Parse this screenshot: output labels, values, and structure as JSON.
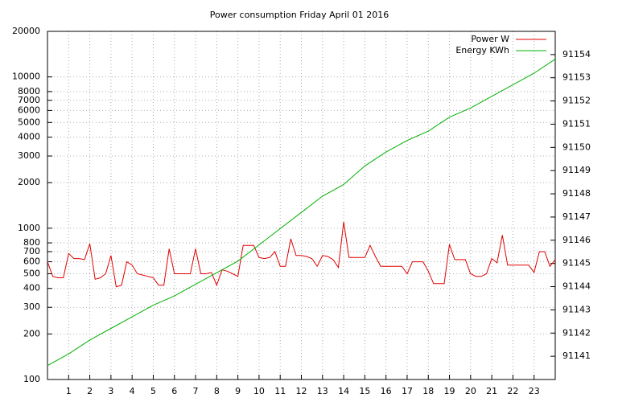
{
  "chart_data": {
    "type": "line",
    "title": "Power consumption Friday April 01 2016",
    "xlim": [
      0,
      24
    ],
    "xticks": [
      1,
      2,
      3,
      4,
      5,
      6,
      7,
      8,
      9,
      10,
      11,
      12,
      13,
      14,
      15,
      16,
      17,
      18,
      19,
      20,
      21,
      22,
      23
    ],
    "ylim": [
      100,
      20000
    ],
    "yscale": "log",
    "yticks": [
      100,
      200,
      300,
      400,
      500,
      600,
      700,
      800,
      1000,
      2000,
      3000,
      4000,
      5000,
      6000,
      7000,
      8000,
      10000,
      20000
    ],
    "y2lim": [
      91140,
      91155
    ],
    "y2ticks": [
      91141,
      91142,
      91143,
      91144,
      91145,
      91146,
      91147,
      91148,
      91149,
      91150,
      91151,
      91152,
      91153,
      91154
    ],
    "grid": true,
    "legend": "top-right",
    "series": [
      {
        "name": "Power W",
        "color": "#e00000",
        "x": [
          0,
          0.25,
          0.5,
          0.75,
          1,
          1.25,
          1.5,
          1.75,
          2,
          2.25,
          2.5,
          2.75,
          3,
          3.25,
          3.5,
          3.75,
          4,
          4.25,
          4.5,
          4.75,
          5,
          5.25,
          5.5,
          5.75,
          6,
          6.25,
          6.5,
          6.75,
          7,
          7.25,
          7.5,
          7.75,
          8,
          8.25,
          8.5,
          8.75,
          9,
          9.25,
          9.5,
          9.75,
          10,
          10.25,
          10.5,
          10.75,
          11,
          11.25,
          11.5,
          11.75,
          12,
          12.25,
          12.5,
          12.75,
          13,
          13.25,
          13.5,
          13.75,
          14,
          14.25,
          14.5,
          14.75,
          15,
          15.25,
          15.5,
          15.75,
          16,
          16.25,
          16.5,
          16.75,
          17,
          17.25,
          17.5,
          17.75,
          18,
          18.25,
          18.5,
          18.75,
          19,
          19.25,
          19.5,
          19.75,
          20,
          20.25,
          20.5,
          20.75,
          21,
          21.25,
          21.5,
          21.75,
          22,
          22.25,
          22.5,
          22.75,
          23,
          23.25,
          23.5,
          23.75,
          24
        ],
        "values": [
          600,
          480,
          470,
          470,
          680,
          630,
          630,
          620,
          790,
          460,
          470,
          500,
          660,
          410,
          420,
          600,
          570,
          500,
          490,
          480,
          470,
          420,
          420,
          730,
          500,
          500,
          500,
          500,
          730,
          500,
          500,
          510,
          420,
          530,
          520,
          500,
          480,
          770,
          770,
          770,
          640,
          630,
          640,
          700,
          560,
          560,
          850,
          660,
          660,
          650,
          630,
          560,
          660,
          650,
          620,
          550,
          1100,
          640,
          640,
          640,
          640,
          770,
          650,
          560,
          560,
          560,
          560,
          560,
          500,
          600,
          600,
          600,
          520,
          430,
          430,
          430,
          780,
          620,
          620,
          620,
          500,
          480,
          480,
          500,
          630,
          590,
          900,
          570,
          570,
          570,
          570,
          570,
          510,
          700,
          700,
          560,
          620
        ]
      },
      {
        "name": "Energy KWh",
        "color": "#00b000",
        "axis": "y2",
        "x": [
          0,
          1,
          2,
          3,
          4,
          5,
          6,
          7,
          8,
          9,
          10,
          11,
          12,
          13,
          14,
          15,
          16,
          17,
          18,
          19,
          20,
          21,
          22,
          23,
          24
        ],
        "values": [
          91140.6,
          91141.1,
          91141.7,
          91142.2,
          91142.7,
          91143.2,
          91143.6,
          91144.1,
          91144.6,
          91145.1,
          91145.8,
          91146.5,
          91147.2,
          91147.9,
          91148.4,
          91149.2,
          91149.8,
          91150.3,
          91150.7,
          91151.3,
          91151.7,
          91152.2,
          91152.7,
          91153.2,
          91153.8
        ]
      }
    ]
  }
}
